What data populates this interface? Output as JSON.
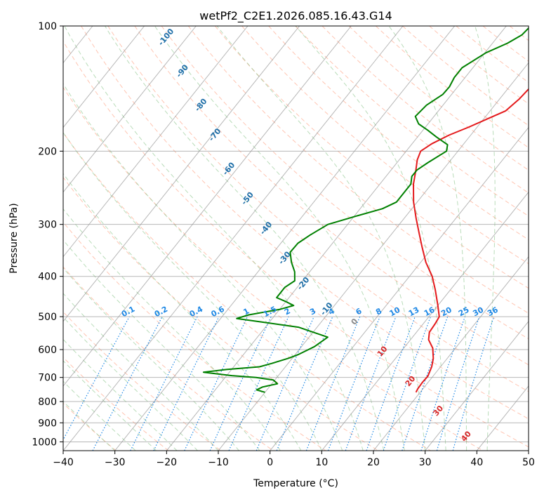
{
  "chart_data": {
    "type": "line",
    "subtype": "skew-t-log-p",
    "title": "wetPf2_C2E1.2026.085.16.43.G14",
    "xlabel": "Temperature (°C)",
    "ylabel": "Pressure (hPa)",
    "xlim": [
      -40,
      50
    ],
    "ylim": [
      1050,
      100
    ],
    "x_ticks": [
      -40,
      -30,
      -20,
      -10,
      0,
      10,
      20,
      30,
      40,
      50
    ],
    "x_tick_labels": [
      "−40",
      "−30",
      "−20",
      "−10",
      "0",
      "10",
      "20",
      "30",
      "40",
      "50"
    ],
    "y_ticks": [
      1000,
      900,
      800,
      700,
      600,
      500,
      400,
      300,
      200,
      100
    ],
    "y_tick_labels": [
      "1000",
      "900",
      "800",
      "700",
      "600",
      "500",
      "400",
      "300",
      "200",
      "100"
    ],
    "grid": true,
    "series": [
      {
        "name": "Temperature",
        "color": "#e41a1c",
        "points": [
          [
            19.2,
            760
          ],
          [
            19.0,
            745
          ],
          [
            18.9,
            720
          ],
          [
            19.0,
            695
          ],
          [
            18.3,
            660
          ],
          [
            17.3,
            630
          ],
          [
            15.6,
            595
          ],
          [
            13.5,
            568
          ],
          [
            12.5,
            545
          ],
          [
            12.3,
            520
          ],
          [
            12.0,
            500
          ],
          [
            10.0,
            470
          ],
          [
            7.0,
            430
          ],
          [
            4.4,
            400
          ],
          [
            1.0,
            370
          ],
          [
            -2.1,
            340
          ],
          [
            -4.8,
            315
          ],
          [
            -7.7,
            290
          ],
          [
            -10.7,
            265
          ],
          [
            -13.5,
            240
          ],
          [
            -15.2,
            222
          ],
          [
            -16.5,
            210
          ],
          [
            -17.2,
            200
          ],
          [
            -16.2,
            192
          ],
          [
            -14.2,
            183
          ],
          [
            -11.6,
            175
          ],
          [
            -9.2,
            167
          ],
          [
            -7.0,
            160
          ],
          [
            -6.2,
            150
          ],
          [
            -5.8,
            138
          ],
          [
            -5.6,
            125
          ],
          [
            -5.2,
            113
          ],
          [
            -4.5,
            105
          ],
          [
            -4.2,
            100
          ]
        ]
      },
      {
        "name": "Dewpoint",
        "color": "#008000",
        "points": [
          [
            -10.0,
            760
          ],
          [
            -12.0,
            750
          ],
          [
            -11.3,
            738
          ],
          [
            -8.9,
            725
          ],
          [
            -10.3,
            710
          ],
          [
            -14.0,
            700
          ],
          [
            -19.0,
            693
          ],
          [
            -25.0,
            680
          ],
          [
            -21.0,
            670
          ],
          [
            -15.0,
            660
          ],
          [
            -13.2,
            648
          ],
          [
            -10.8,
            630
          ],
          [
            -9.5,
            618
          ],
          [
            -8.2,
            600
          ],
          [
            -7.5,
            590
          ],
          [
            -6.4,
            560
          ],
          [
            -13.6,
            530
          ],
          [
            -26.9,
            505
          ],
          [
            -25.1,
            495
          ],
          [
            -19.9,
            480
          ],
          [
            -17.9,
            470
          ],
          [
            -20.0,
            460
          ],
          [
            -22.4,
            450
          ],
          [
            -22.4,
            425
          ],
          [
            -21.5,
            410
          ],
          [
            -22.9,
            390
          ],
          [
            -25.0,
            370
          ],
          [
            -26.8,
            350
          ],
          [
            -26.7,
            333
          ],
          [
            -25.6,
            318
          ],
          [
            -23.8,
            300
          ],
          [
            -19.8,
            287
          ],
          [
            -15.7,
            275
          ],
          [
            -14.0,
            265
          ],
          [
            -14.0,
            250
          ],
          [
            -14.0,
            240
          ],
          [
            -15.0,
            230
          ],
          [
            -15.0,
            222
          ],
          [
            -14.0,
            213
          ],
          [
            -12.2,
            200
          ],
          [
            -13.0,
            193
          ],
          [
            -16.3,
            185
          ],
          [
            -19.1,
            178
          ],
          [
            -21.8,
            172
          ],
          [
            -23.6,
            165
          ],
          [
            -23.2,
            155
          ],
          [
            -21.7,
            146
          ],
          [
            -21.6,
            140
          ],
          [
            -22.1,
            133
          ],
          [
            -22.1,
            126
          ],
          [
            -19.8,
            116
          ],
          [
            -17.1,
            110
          ],
          [
            -15.6,
            105
          ],
          [
            -15.3,
            100
          ]
        ]
      }
    ],
    "annotations": {
      "dry_adiabats": [
        "-100",
        "-90",
        "-80",
        "-70",
        "-60",
        "-50",
        "-40",
        "-30",
        "-20",
        "-10",
        "0",
        "10",
        "20",
        "30",
        "40"
      ],
      "mixing_ratios": [
        "0.1",
        "0.2",
        "0.4",
        "0.6",
        "1",
        "1.5",
        "2",
        "3",
        "4",
        "6",
        "8",
        "10",
        "13",
        "16",
        "20",
        "25",
        "30",
        "36"
      ]
    },
    "colors": {
      "dry_adiabat": "#ff9f7f",
      "moist_adiabat": "#7fbf7f",
      "mixing_ratio": "#1e88e5",
      "isotherm": "#999999",
      "dry_adiabat_label": "#1f6fa8",
      "warm_label": "#d62728",
      "zero_label": "#888888",
      "mixing_label": "#1e88e5"
    }
  }
}
